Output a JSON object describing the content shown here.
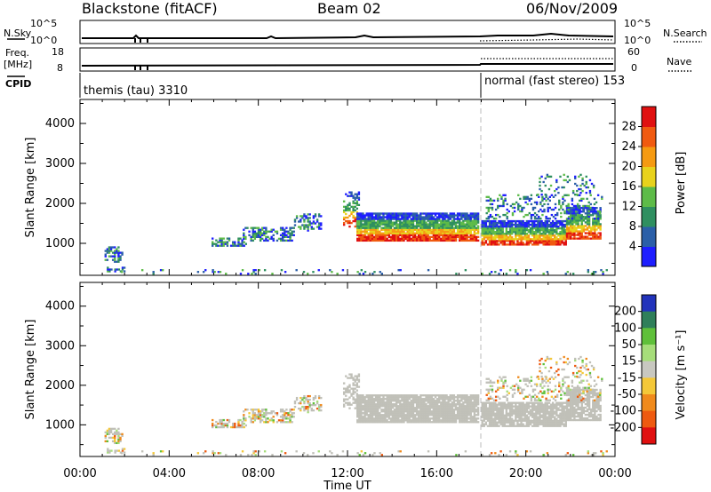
{
  "header": {
    "station": "Blackstone (fitACF)",
    "beam": "Beam 02",
    "date": "06/Nov/2009"
  },
  "strip_labels": {
    "nsky": "N.Sky",
    "nsky_ticks": [
      "10^5",
      "10^0"
    ],
    "nsearch": "N.Search",
    "nsearch_ticks": [
      "10^5",
      "10^0"
    ],
    "freq": "Freq.",
    "freq_unit": "[MHz]",
    "freq_ticks": [
      "18",
      "8"
    ],
    "nave": "Nave",
    "nave_ticks": [
      "60",
      "0"
    ],
    "cpid": "CPID",
    "cpid_1": "themis (tau) 3310",
    "cpid_2": "normal (fast stereo) 153"
  },
  "chart_data": [
    {
      "type": "heatmap",
      "name": "power",
      "ylabel": "Slant Range [km]",
      "yticks": [
        "1000",
        "2000",
        "3000",
        "4000"
      ],
      "ylim": [
        200,
        4600
      ],
      "xlim_hours": [
        0,
        24
      ],
      "colorbar_label": "Power [dB]",
      "colorbar_ticks": [
        "4",
        "8",
        "12",
        "16",
        "20",
        "24",
        "28"
      ],
      "colorbar_range": [
        0,
        32
      ],
      "colors": [
        "#1e1eff",
        "#2b5fa8",
        "#2f8f60",
        "#5dbb48",
        "#e8d21c",
        "#f59a11",
        "#f05a10",
        "#e01010"
      ]
    },
    {
      "type": "heatmap",
      "name": "velocity",
      "ylabel": "Slant Range [km]",
      "yticks": [
        "1000",
        "2000",
        "3000",
        "4000"
      ],
      "ylim": [
        200,
        4600
      ],
      "xlim_hours": [
        0,
        24
      ],
      "colorbar_label": "Velocity [m s⁻¹]",
      "colorbar_ticks": [
        "200",
        "100",
        "50",
        "15",
        "-15",
        "-50",
        "-100",
        "-200"
      ],
      "colors": [
        "#2233bb",
        "#2f7f5a",
        "#5fc03a",
        "#a6dd7a",
        "#c8c8c0",
        "#f4c838",
        "#f08a1c",
        "#ee5a10",
        "#e01010"
      ],
      "ground_scatter_color": "#c0c0b8"
    }
  ],
  "xaxis": {
    "ticks": [
      "00:00",
      "04:00",
      "08:00",
      "12:00",
      "16:00",
      "20:00",
      "00:00"
    ],
    "label": "Time UT"
  }
}
